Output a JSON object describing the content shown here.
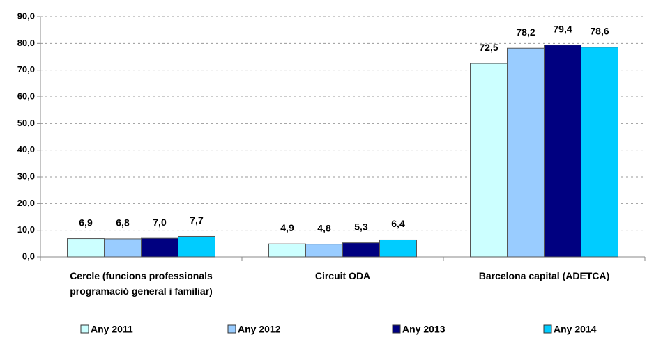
{
  "chart_data": {
    "type": "bar",
    "categories": [
      "Cercle (funcions professionals programació general i familiar)",
      "Circuit ODA",
      "Barcelona capital (ADETCA)"
    ],
    "series": [
      {
        "name": "Any 2011",
        "color": "#ccffff",
        "values": [
          6.9,
          4.9,
          72.5
        ],
        "value_labels": [
          "6,9",
          "4,9",
          "72,5"
        ]
      },
      {
        "name": "Any 2012",
        "color": "#99ccff",
        "values": [
          6.8,
          4.8,
          78.2
        ],
        "value_labels": [
          "6,8",
          "4,8",
          "78,2"
        ]
      },
      {
        "name": "Any 2013",
        "color": "#000080",
        "values": [
          7.0,
          5.3,
          79.4
        ],
        "value_labels": [
          "7,0",
          "5,3",
          "79,4"
        ]
      },
      {
        "name": "Any 2014",
        "color": "#00ccff",
        "values": [
          7.7,
          6.4,
          78.6
        ],
        "value_labels": [
          "7,7",
          "6,4",
          "78,6"
        ]
      }
    ],
    "ylim": [
      0,
      90
    ],
    "yticks": [
      {
        "value": 0,
        "label": "0,0"
      },
      {
        "value": 10,
        "label": "10,0"
      },
      {
        "value": 20,
        "label": "20,0"
      },
      {
        "value": 30,
        "label": "30,0"
      },
      {
        "value": 40,
        "label": "40,0"
      },
      {
        "value": 50,
        "label": "50,0"
      },
      {
        "value": 60,
        "label": "60,0"
      },
      {
        "value": 70,
        "label": "70,0"
      },
      {
        "value": 80,
        "label": "80,0"
      },
      {
        "value": 90,
        "label": "90,0"
      }
    ],
    "grid": true,
    "legend": "bottom"
  }
}
